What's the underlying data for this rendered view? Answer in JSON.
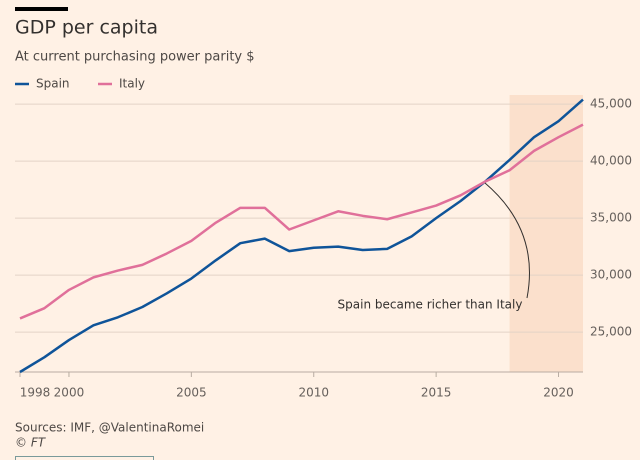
{
  "chart_data": {
    "type": "line",
    "title": "GDP per capita",
    "subtitle": "At current purchasing power parity $",
    "x": [
      1998,
      1999,
      2000,
      2001,
      2002,
      2003,
      2004,
      2005,
      2006,
      2007,
      2008,
      2009,
      2010,
      2011,
      2012,
      2013,
      2014,
      2015,
      2016,
      2017,
      2018,
      2019,
      2020,
      2021
    ],
    "series": [
      {
        "name": "Spain",
        "color": "#0f5499",
        "values": [
          21500,
          22800,
          24300,
          25600,
          26300,
          27200,
          28400,
          29700,
          31300,
          32800,
          33200,
          32100,
          32400,
          32500,
          32200,
          32300,
          33400,
          35000,
          36500,
          38200,
          40100,
          42100,
          43500,
          45400
        ]
      },
      {
        "name": "Italy",
        "color": "#e0709a",
        "values": [
          26200,
          27100,
          28700,
          29800,
          30400,
          30900,
          31900,
          33000,
          34600,
          35900,
          35900,
          34000,
          34800,
          35600,
          35200,
          34900,
          35500,
          36100,
          37000,
          38200,
          39200,
          40900,
          42100,
          43200
        ]
      }
    ],
    "xlim": [
      1998,
      2021
    ],
    "xticks": [
      1998,
      2000,
      2005,
      2010,
      2015,
      2020
    ],
    "ylim": [
      21500,
      45800
    ],
    "yticks": [
      {
        "value": 25000,
        "label": "25,000"
      },
      {
        "value": 30000,
        "label": "30,000"
      },
      {
        "value": 35000,
        "label": "35,000"
      },
      {
        "value": 40000,
        "label": "40,000"
      },
      {
        "value": 45000,
        "label": "45,000"
      }
    ],
    "grid": true,
    "shaded_x": [
      2018,
      2021
    ],
    "annotation": "Spain became richer than Italy",
    "source": "Sources: IMF, @ValentinaRomei",
    "credit": "© FT"
  }
}
